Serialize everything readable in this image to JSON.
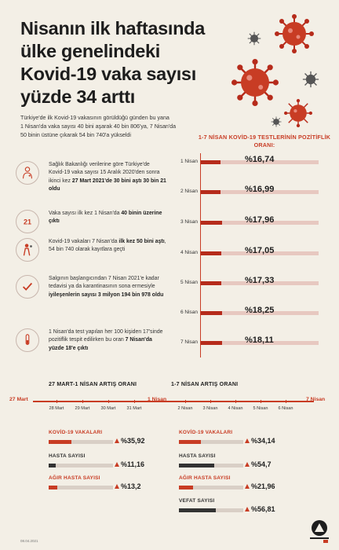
{
  "title_lines": [
    "Nisanın ilk haftasında",
    "ülke genelindeki",
    "Kovid-19 vaka sayısı",
    "yüzde 34 arttı"
  ],
  "intro_lines": [
    "Türkiye'de ilk Kovid-19 vakasının görüldüğü günden bu yana",
    "1 Nisan'da vaka sayısı 40 bini aşarak 40 bin 806'ya, 7 Nisan'da",
    "50 binin üstüne çıkarak 54 bin 740'a yükseldi"
  ],
  "chart_data": {
    "type": "bar",
    "title": "1-7 NİSAN KOVİD-19 TESTLERİNİN POZİTİFLİK ORANI:",
    "categories": [
      "1 Nisan",
      "2 Nisan",
      "3 Nisan",
      "4 Nisan",
      "5 Nisan",
      "6 Nisan",
      "7 Nisan"
    ],
    "values": [
      16.74,
      16.99,
      17.96,
      17.05,
      17.33,
      18.25,
      18.11
    ],
    "value_labels": [
      "%16,74",
      "%16,99",
      "%17,96",
      "%17,05",
      "%17,33",
      "%18,25",
      "%18,11"
    ],
    "ylim": [
      0,
      100
    ]
  },
  "facts": [
    {
      "icon": "doctor-icon",
      "parts": [
        {
          "t": "Sağlık Bakanlığı verilerine göre Türkiye'de Kovid-19 vaka sayısı 15 Aralık 2020'den sonra ikinci kez ",
          "b": false
        },
        {
          "t": "27 Mart 2021'de 30 bini aştı 30 bin 21 oldu",
          "b": true
        }
      ]
    },
    {
      "icon": "number-21-icon",
      "parts": [
        {
          "t": "Vaka sayısı ilk kez 1 Nisan'da ",
          "b": false
        },
        {
          "t": "40 binin üzerine çıktı",
          "b": true
        }
      ]
    },
    {
      "icon": "sick-person-icon",
      "parts": [
        {
          "t": "Kovid-19 vakaları 7 Nisan'da ",
          "b": false
        },
        {
          "t": "ilk kez 50 bini aştı",
          "b": true
        },
        {
          "t": ", 54 bin 740 olarak kayıtlara geçti",
          "b": false
        }
      ]
    },
    {
      "icon": "checkmark-icon",
      "parts": [
        {
          "t": "Salgının başlangıcından 7 Nisan 2021'e kadar tedavisi ya da karantinasının sona ermesiyle ",
          "b": false
        },
        {
          "t": "iyileşenlerin sayısı 3 milyon 194 bin 978 oldu",
          "b": true
        }
      ]
    },
    {
      "icon": "test-tube-icon",
      "parts": [
        {
          "t": "1 Nisan'da test yapılan her 100 kişiden 17'sinde pozitiflik tespit edilirken bu oran ",
          "b": false
        },
        {
          "t": "7 Nisan'da yüzde 18'e çıktı",
          "b": true
        }
      ]
    }
  ],
  "march_section": {
    "title": "27 MART-1 NİSAN ARTIŞ ORANI",
    "start": "27 Mart",
    "ticks": [
      "28 Mart",
      "29 Mart",
      "30 Mart",
      "31 Mart"
    ],
    "stats": [
      {
        "label": "KOVİD-19 VAKALARI",
        "value": 35.92,
        "text": "%35,92",
        "color": "#c83c24"
      },
      {
        "label": "HASTA SAYISI",
        "value": 11.16,
        "text": "%11,16",
        "color": "#333333"
      },
      {
        "label": "AĞIR HASTA SAYISI",
        "value": 13.2,
        "text": "%13,2",
        "color": "#c83c24"
      }
    ]
  },
  "april_section": {
    "title": "1-7 NİSAN ARTIŞ ORANI",
    "mid": "1 Nisan",
    "end": "7 Nisan",
    "ticks": [
      "2 Nisan",
      "3 Nisan",
      "4 Nisan",
      "5 Nisan",
      "6 Nisan"
    ],
    "stats": [
      {
        "label": "KOVİD-19 VAKALARI",
        "value": 34.14,
        "text": "%34,14",
        "color": "#c83c24"
      },
      {
        "label": "HASTA SAYISI",
        "value": 54.7,
        "text": "%54,7",
        "color": "#333333"
      },
      {
        "label": "AĞIR HASTA SAYISI",
        "value": 21.96,
        "text": "%21,96",
        "color": "#c83c24"
      },
      {
        "label": "VEFAT SAYISI",
        "value": 56.81,
        "text": "%56,81",
        "color": "#333333"
      }
    ]
  },
  "footer_date": "08.04.2021",
  "colors": {
    "accent": "#c83c24",
    "dark": "#333333",
    "bg": "#f3efe6"
  }
}
